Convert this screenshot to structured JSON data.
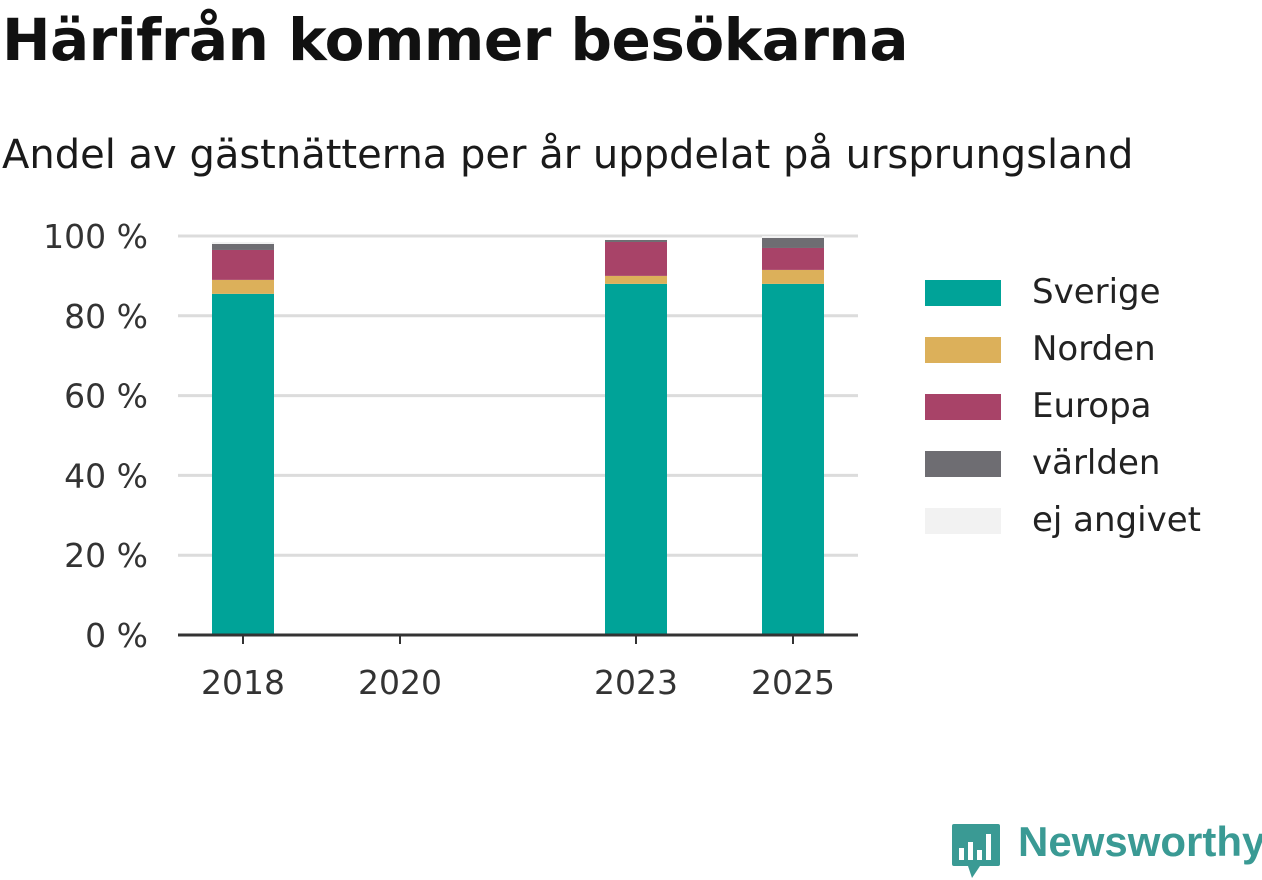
{
  "header": {
    "title": "Härifrån kommer besökarna",
    "subtitle": "Andel av gästnätterna per år uppdelat på ursprungsland"
  },
  "brand": {
    "name": "Newsworthy",
    "color": "#3a9a94",
    "icon": "bar-chart-speech-bubble-icon"
  },
  "chart_data": {
    "type": "bar",
    "stacked": true,
    "categories": [
      "2018",
      "2020",
      "2023",
      "2025"
    ],
    "y_ticks": [
      "0 %",
      "20 %",
      "40 %",
      "60 %",
      "80 %",
      "100 %"
    ],
    "ylim": [
      0,
      100
    ],
    "grid": true,
    "legend_position": "right",
    "series": [
      {
        "name": "Sverige",
        "color": "#00a398",
        "values": [
          85.5,
          null,
          88,
          88
        ]
      },
      {
        "name": "Norden",
        "color": "#dcb05a",
        "values": [
          3.5,
          null,
          2,
          3.5
        ]
      },
      {
        "name": "Europa",
        "color": "#a84368",
        "values": [
          7.5,
          null,
          8.5,
          5.5
        ]
      },
      {
        "name": "världen",
        "color": "#6e6d72",
        "values": [
          1.5,
          null,
          0.5,
          2.5
        ]
      },
      {
        "name": "ej angivet",
        "color": "#f2f2f2",
        "values": [
          0.5,
          null,
          0,
          0.5
        ]
      }
    ]
  }
}
